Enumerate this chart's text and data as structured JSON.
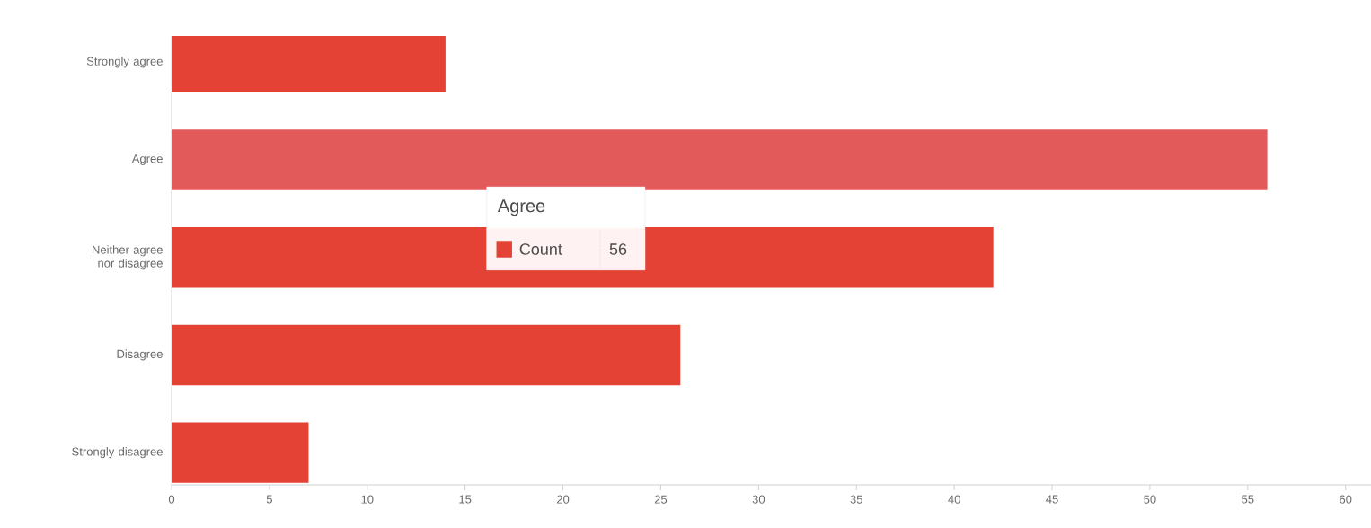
{
  "chart_data": {
    "type": "bar",
    "orientation": "horizontal",
    "categories": [
      "Strongly agree",
      "Agree",
      "Neither agree nor disagree",
      "Disagree",
      "Strongly disagree"
    ],
    "values": [
      14,
      56,
      42,
      26,
      7
    ],
    "colors": [
      "#e34234",
      "#e35a5a",
      "#e34234",
      "#e34234",
      "#e34234"
    ],
    "xlim": [
      0,
      61.3
    ],
    "xticks": [
      0,
      5,
      10,
      15,
      20,
      25,
      30,
      35,
      40,
      45,
      50,
      55,
      60
    ],
    "grid": false,
    "annotations": [
      "Agree",
      "Count",
      "56"
    ]
  }
}
